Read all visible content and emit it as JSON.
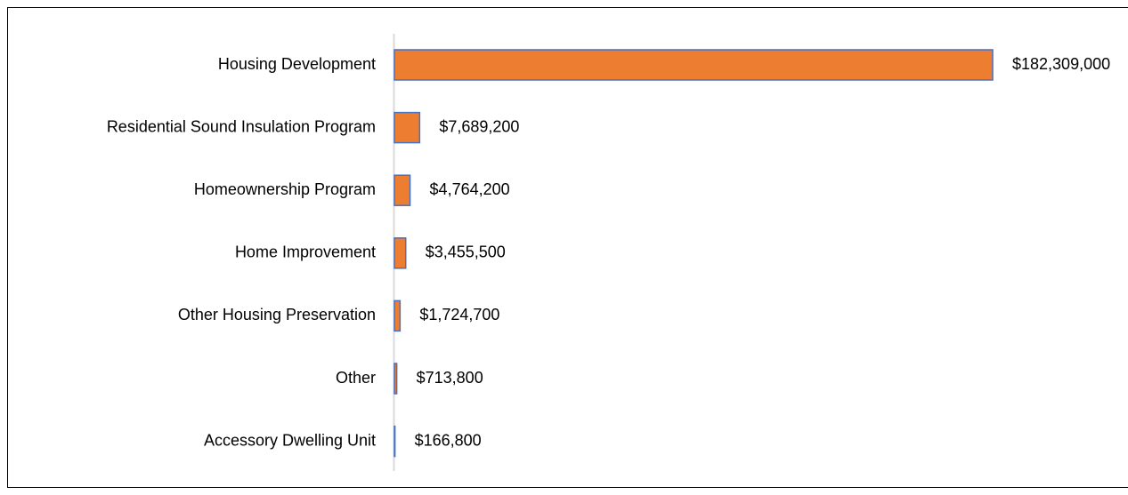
{
  "chart_data": {
    "type": "bar",
    "orientation": "horizontal",
    "categories": [
      "Housing Development",
      "Residential Sound Insulation Program",
      "Homeownership Program",
      "Home Improvement",
      "Other Housing Preservation",
      "Other",
      "Accessory Dwelling Unit"
    ],
    "values": [
      182309000,
      7689200,
      4764200,
      3455500,
      1724700,
      713800,
      166800
    ],
    "value_labels": [
      "$182,309,000",
      "$7,689,200",
      "$4,764,200",
      "$3,455,500",
      "$1,724,700",
      "$713,800",
      "$166,800"
    ],
    "color": "#ed7d31",
    "edge_color": "#4472c4"
  }
}
